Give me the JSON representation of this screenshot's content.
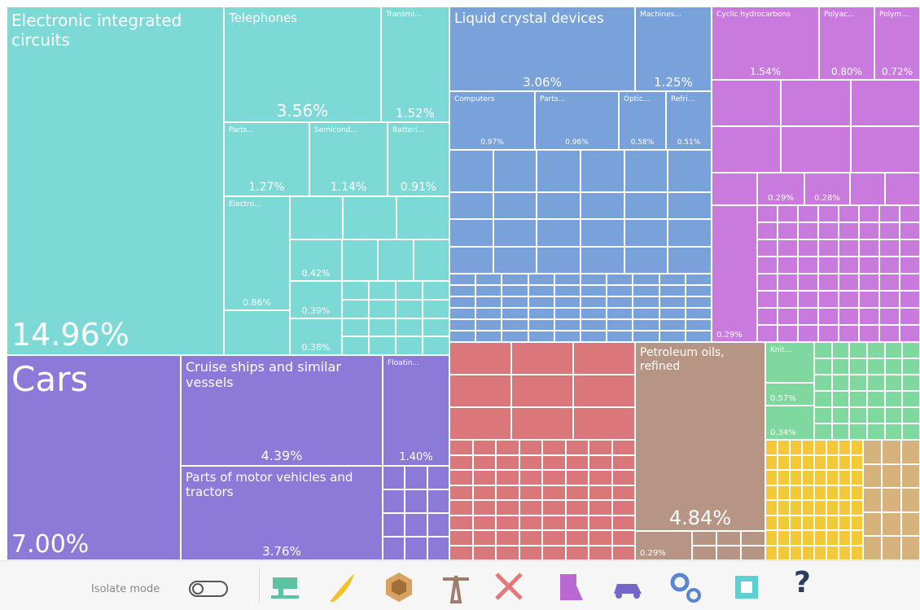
{
  "tiles": [
    {
      "name": "Electronic integrated circuits",
      "share": "14.96%"
    },
    {
      "name": "Telephones",
      "share": "3.56%"
    },
    {
      "name": "Transmi...",
      "share": "1.52%"
    },
    {
      "name": "Parts...",
      "share": "1.27%"
    },
    {
      "name": "Semicond...",
      "share": "1.14%"
    },
    {
      "name": "Batteri...",
      "share": "0.91%"
    },
    {
      "name": "Electro...",
      "share": "0.86%"
    },
    {
      "share": "0.42%"
    },
    {
      "share": "0.39%"
    },
    {
      "share": "0.38%"
    },
    {
      "name": "Liquid crystal devices",
      "share": "3.06%"
    },
    {
      "name": "Machines...",
      "share": "1.25%"
    },
    {
      "name": "Computers",
      "share": "0.97%"
    },
    {
      "name": "Parts...",
      "share": "0.96%"
    },
    {
      "name": "Optic...",
      "share": "0.58%"
    },
    {
      "name": "Refri...",
      "share": "0.51%"
    },
    {
      "name": "Cyclic hydrocarbons",
      "share": "1.54%"
    },
    {
      "name": "Polyac...",
      "share": "0.80%"
    },
    {
      "name": "Polym...",
      "share": "0.72%"
    },
    {
      "share": "0.29%"
    },
    {
      "share": "0.28%"
    },
    {
      "share": "0.29%"
    },
    {
      "name": "Cars",
      "share": "7.00%"
    },
    {
      "name": "Cruise ships and similar vessels",
      "share": "4.39%"
    },
    {
      "name": "Parts of motor vehicles and tractors",
      "share": "3.76%"
    },
    {
      "name": "Floatin...",
      "share": "1.40%"
    },
    {
      "name": "Petroleum oils, refined",
      "share": "4.84%"
    },
    {
      "share": "0.29%"
    },
    {
      "name": "Knit..."
    },
    {
      "share": "0.57%"
    },
    {
      "share": "0.34%"
    }
  ],
  "toolbar": {
    "isolate_label": "Isolate mode",
    "help": "?"
  }
}
